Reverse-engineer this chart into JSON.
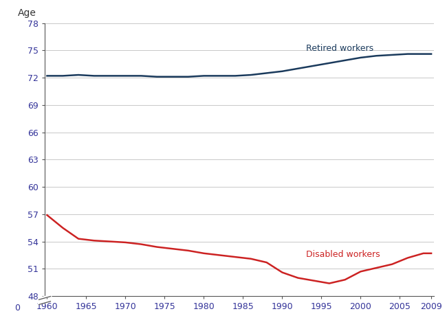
{
  "retired_x": [
    1960,
    1962,
    1964,
    1966,
    1968,
    1970,
    1972,
    1974,
    1976,
    1978,
    1980,
    1982,
    1984,
    1986,
    1988,
    1990,
    1992,
    1994,
    1996,
    1998,
    2000,
    2002,
    2004,
    2006,
    2008,
    2009
  ],
  "retired_y": [
    72.2,
    72.2,
    72.3,
    72.2,
    72.2,
    72.2,
    72.2,
    72.1,
    72.1,
    72.1,
    72.2,
    72.2,
    72.2,
    72.3,
    72.5,
    72.7,
    73.0,
    73.3,
    73.6,
    73.9,
    74.2,
    74.4,
    74.5,
    74.6,
    74.6,
    74.6
  ],
  "disabled_x": [
    1960,
    1962,
    1964,
    1966,
    1968,
    1970,
    1972,
    1974,
    1976,
    1978,
    1980,
    1982,
    1984,
    1986,
    1988,
    1990,
    1992,
    1994,
    1996,
    1998,
    2000,
    2002,
    2004,
    2006,
    2008,
    2009
  ],
  "disabled_y": [
    56.9,
    55.5,
    54.3,
    54.1,
    54.0,
    53.9,
    53.7,
    53.4,
    53.2,
    53.0,
    52.7,
    52.5,
    52.3,
    52.1,
    51.7,
    50.6,
    50.0,
    49.7,
    49.4,
    49.8,
    50.7,
    51.1,
    51.5,
    52.2,
    52.7,
    52.7
  ],
  "retired_color": "#1a3a5c",
  "disabled_color": "#cc2222",
  "age_label": "Age",
  "yticks": [
    48,
    51,
    54,
    57,
    60,
    63,
    66,
    69,
    72,
    75,
    78
  ],
  "xticks": [
    1960,
    1965,
    1970,
    1975,
    1980,
    1985,
    1990,
    1995,
    2000,
    2005,
    2009
  ],
  "xlim": [
    1960,
    2009
  ],
  "ylim": [
    48,
    78
  ],
  "retired_label": "Retired workers",
  "disabled_label": "Disabled workers",
  "linewidth": 1.8,
  "background_color": "#ffffff",
  "grid_color": "#c8c8c8"
}
